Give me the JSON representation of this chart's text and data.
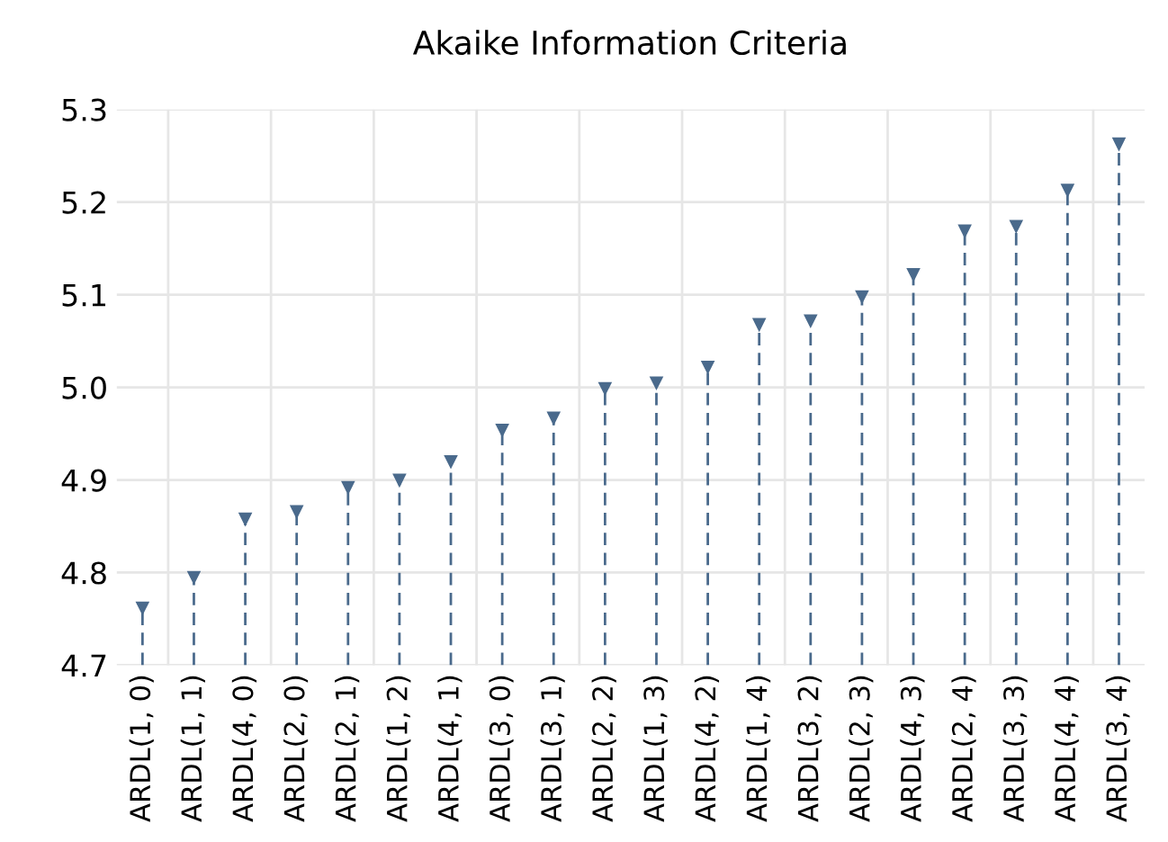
{
  "chart_data": {
    "type": "lollipop",
    "title": "Akaike Information Criteria",
    "categories": [
      "ARDL(1, 0)",
      "ARDL(1, 1)",
      "ARDL(4, 0)",
      "ARDL(2, 0)",
      "ARDL(2, 1)",
      "ARDL(1, 2)",
      "ARDL(4, 1)",
      "ARDL(3, 0)",
      "ARDL(3, 1)",
      "ARDL(2, 2)",
      "ARDL(1, 3)",
      "ARDL(4, 2)",
      "ARDL(1, 4)",
      "ARDL(3, 2)",
      "ARDL(2, 3)",
      "ARDL(4, 3)",
      "ARDL(2, 4)",
      "ARDL(3, 3)",
      "ARDL(4, 4)",
      "ARDL(3, 4)"
    ],
    "values": [
      4.762,
      4.795,
      4.858,
      4.866,
      4.892,
      4.9,
      4.92,
      4.954,
      4.967,
      4.999,
      5.005,
      5.022,
      5.068,
      5.072,
      5.098,
      5.122,
      5.169,
      5.174,
      5.213,
      5.263
    ],
    "color": "#4a6a8c",
    "marker": "triangle",
    "line_style": "dashed",
    "ylim": [
      4.7,
      5.3
    ],
    "yticks": [
      4.7,
      4.8,
      4.9,
      {
        "value": 5.0,
        "label": "5.0"
      },
      5.1,
      5.2,
      5.3
    ],
    "grid": true
  }
}
